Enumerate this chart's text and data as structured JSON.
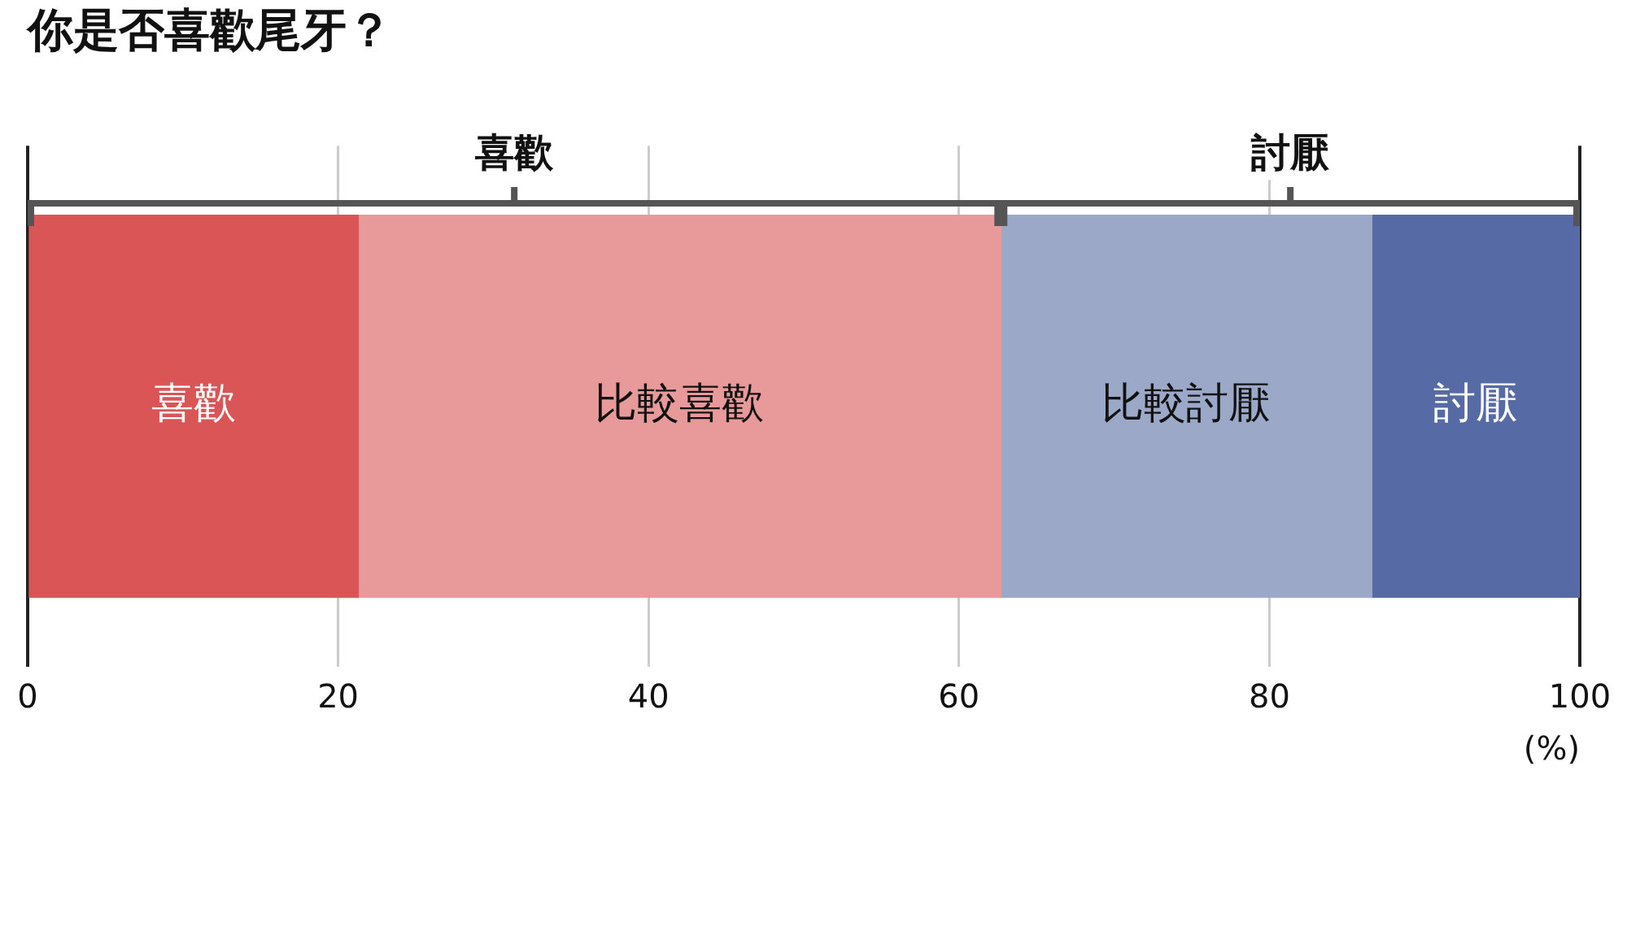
{
  "chart_data": {
    "type": "bar",
    "orientation": "horizontal",
    "stacked": true,
    "title": "你是否喜歡尾牙？",
    "xlabel": "(%)",
    "categories": [
      null
    ],
    "series": [
      {
        "name": "喜歡",
        "color": "#d95556",
        "values": [
          21.3
        ]
      },
      {
        "name": "比較喜歡",
        "color": "#e89a9a",
        "values": [
          41.4
        ]
      },
      {
        "name": "比較討厭",
        "color": "#9ba8c8",
        "values": [
          23.9
        ]
      },
      {
        "name": "討厭",
        "color": "#566aa6",
        "values": [
          13.4
        ]
      }
    ],
    "annotations": [
      "喜歡",
      "討厭"
    ],
    "xlim": [
      0,
      100
    ],
    "xticks": [
      0,
      20,
      40,
      60,
      80,
      100
    ],
    "grid": "x",
    "legend": false
  }
}
